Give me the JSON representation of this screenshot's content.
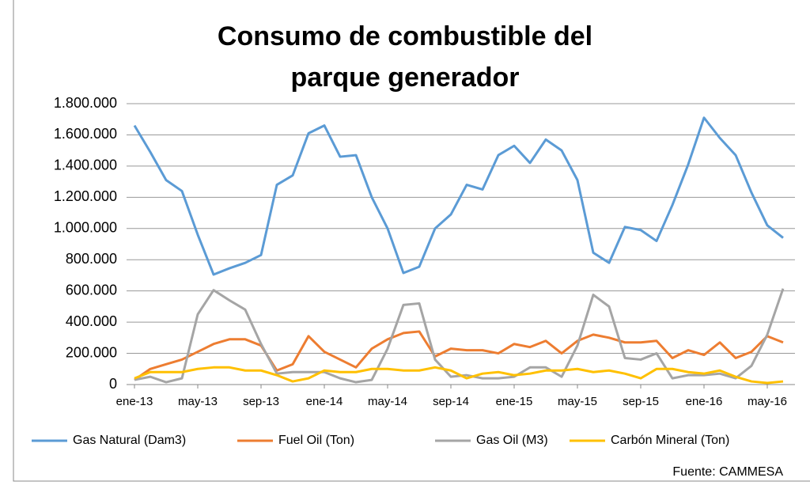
{
  "chart_data": {
    "type": "line",
    "title": [
      "Consumo de combustible del",
      "parque generador"
    ],
    "source": "Fuente: CAMMESA",
    "categories": [
      "ene-13",
      null,
      null,
      null,
      "may-13",
      null,
      null,
      null,
      "sep-13",
      null,
      null,
      null,
      "ene-14",
      null,
      null,
      null,
      "may-14",
      null,
      null,
      null,
      "sep-14",
      null,
      null,
      null,
      "ene-15",
      null,
      null,
      null,
      "may-15",
      null,
      null,
      null,
      "sep-15",
      null,
      null,
      null,
      "ene-16",
      null,
      null,
      null,
      "may-16",
      null
    ],
    "series": [
      {
        "name": "Gas Natural (Dam3)",
        "color": "#5b9bd5",
        "values": [
          1660000,
          1490000,
          1310000,
          1240000,
          960000,
          705000,
          745000,
          780000,
          830000,
          1280000,
          1340000,
          1610000,
          1660000,
          1460000,
          1470000,
          1200000,
          1000000,
          715000,
          755000,
          1000000,
          1090000,
          1280000,
          1250000,
          1470000,
          1530000,
          1420000,
          1570000,
          1500000,
          1310000,
          845000,
          780000,
          1010000,
          990000,
          920000,
          1150000,
          1410000,
          1710000,
          1580000,
          1470000,
          1230000,
          1020000,
          940000
        ]
      },
      {
        "name": "Fuel Oil (Ton)",
        "color": "#ed7d31",
        "values": [
          30000,
          100000,
          130000,
          160000,
          210000,
          260000,
          290000,
          290000,
          250000,
          90000,
          130000,
          310000,
          210000,
          160000,
          110000,
          230000,
          290000,
          330000,
          340000,
          180000,
          230000,
          220000,
          220000,
          200000,
          260000,
          240000,
          280000,
          200000,
          280000,
          320000,
          300000,
          270000,
          270000,
          280000,
          170000,
          220000,
          190000,
          270000,
          170000,
          210000,
          310000,
          270000
        ]
      },
      {
        "name": "Gas Oil (M3)",
        "color": "#a5a5a5",
        "values": [
          30000,
          50000,
          15000,
          40000,
          450000,
          605000,
          540000,
          480000,
          260000,
          70000,
          80000,
          80000,
          80000,
          40000,
          15000,
          30000,
          230000,
          510000,
          520000,
          160000,
          50000,
          60000,
          40000,
          40000,
          50000,
          110000,
          110000,
          50000,
          250000,
          575000,
          500000,
          170000,
          160000,
          200000,
          40000,
          60000,
          60000,
          70000,
          40000,
          120000,
          320000,
          615000
        ]
      },
      {
        "name": "Carbón Mineral (Ton)",
        "color": "#ffc000",
        "values": [
          40000,
          80000,
          80000,
          80000,
          100000,
          110000,
          110000,
          90000,
          90000,
          60000,
          20000,
          40000,
          90000,
          80000,
          80000,
          100000,
          100000,
          90000,
          90000,
          110000,
          90000,
          40000,
          70000,
          80000,
          60000,
          70000,
          90000,
          90000,
          100000,
          80000,
          90000,
          70000,
          40000,
          100000,
          100000,
          80000,
          70000,
          90000,
          50000,
          20000,
          10000,
          20000
        ]
      }
    ],
    "ylim": [
      0,
      1800000
    ],
    "yticks": [
      0,
      {
        "value": 200000,
        "label": "200.000"
      },
      {
        "value": 400000,
        "label": "400.000"
      },
      {
        "value": 600000,
        "label": "600.000"
      },
      {
        "value": 800000,
        "label": "800.000"
      },
      {
        "value": 1000000,
        "label": "1.000.000"
      },
      {
        "value": 1200000,
        "label": "1.200.000"
      },
      {
        "value": 1400000,
        "label": "1.400.000"
      },
      {
        "value": 1600000,
        "label": "1.600.000"
      },
      {
        "value": 1800000,
        "label": "1.800.000"
      }
    ],
    "grid": true,
    "legend": "bottom"
  }
}
